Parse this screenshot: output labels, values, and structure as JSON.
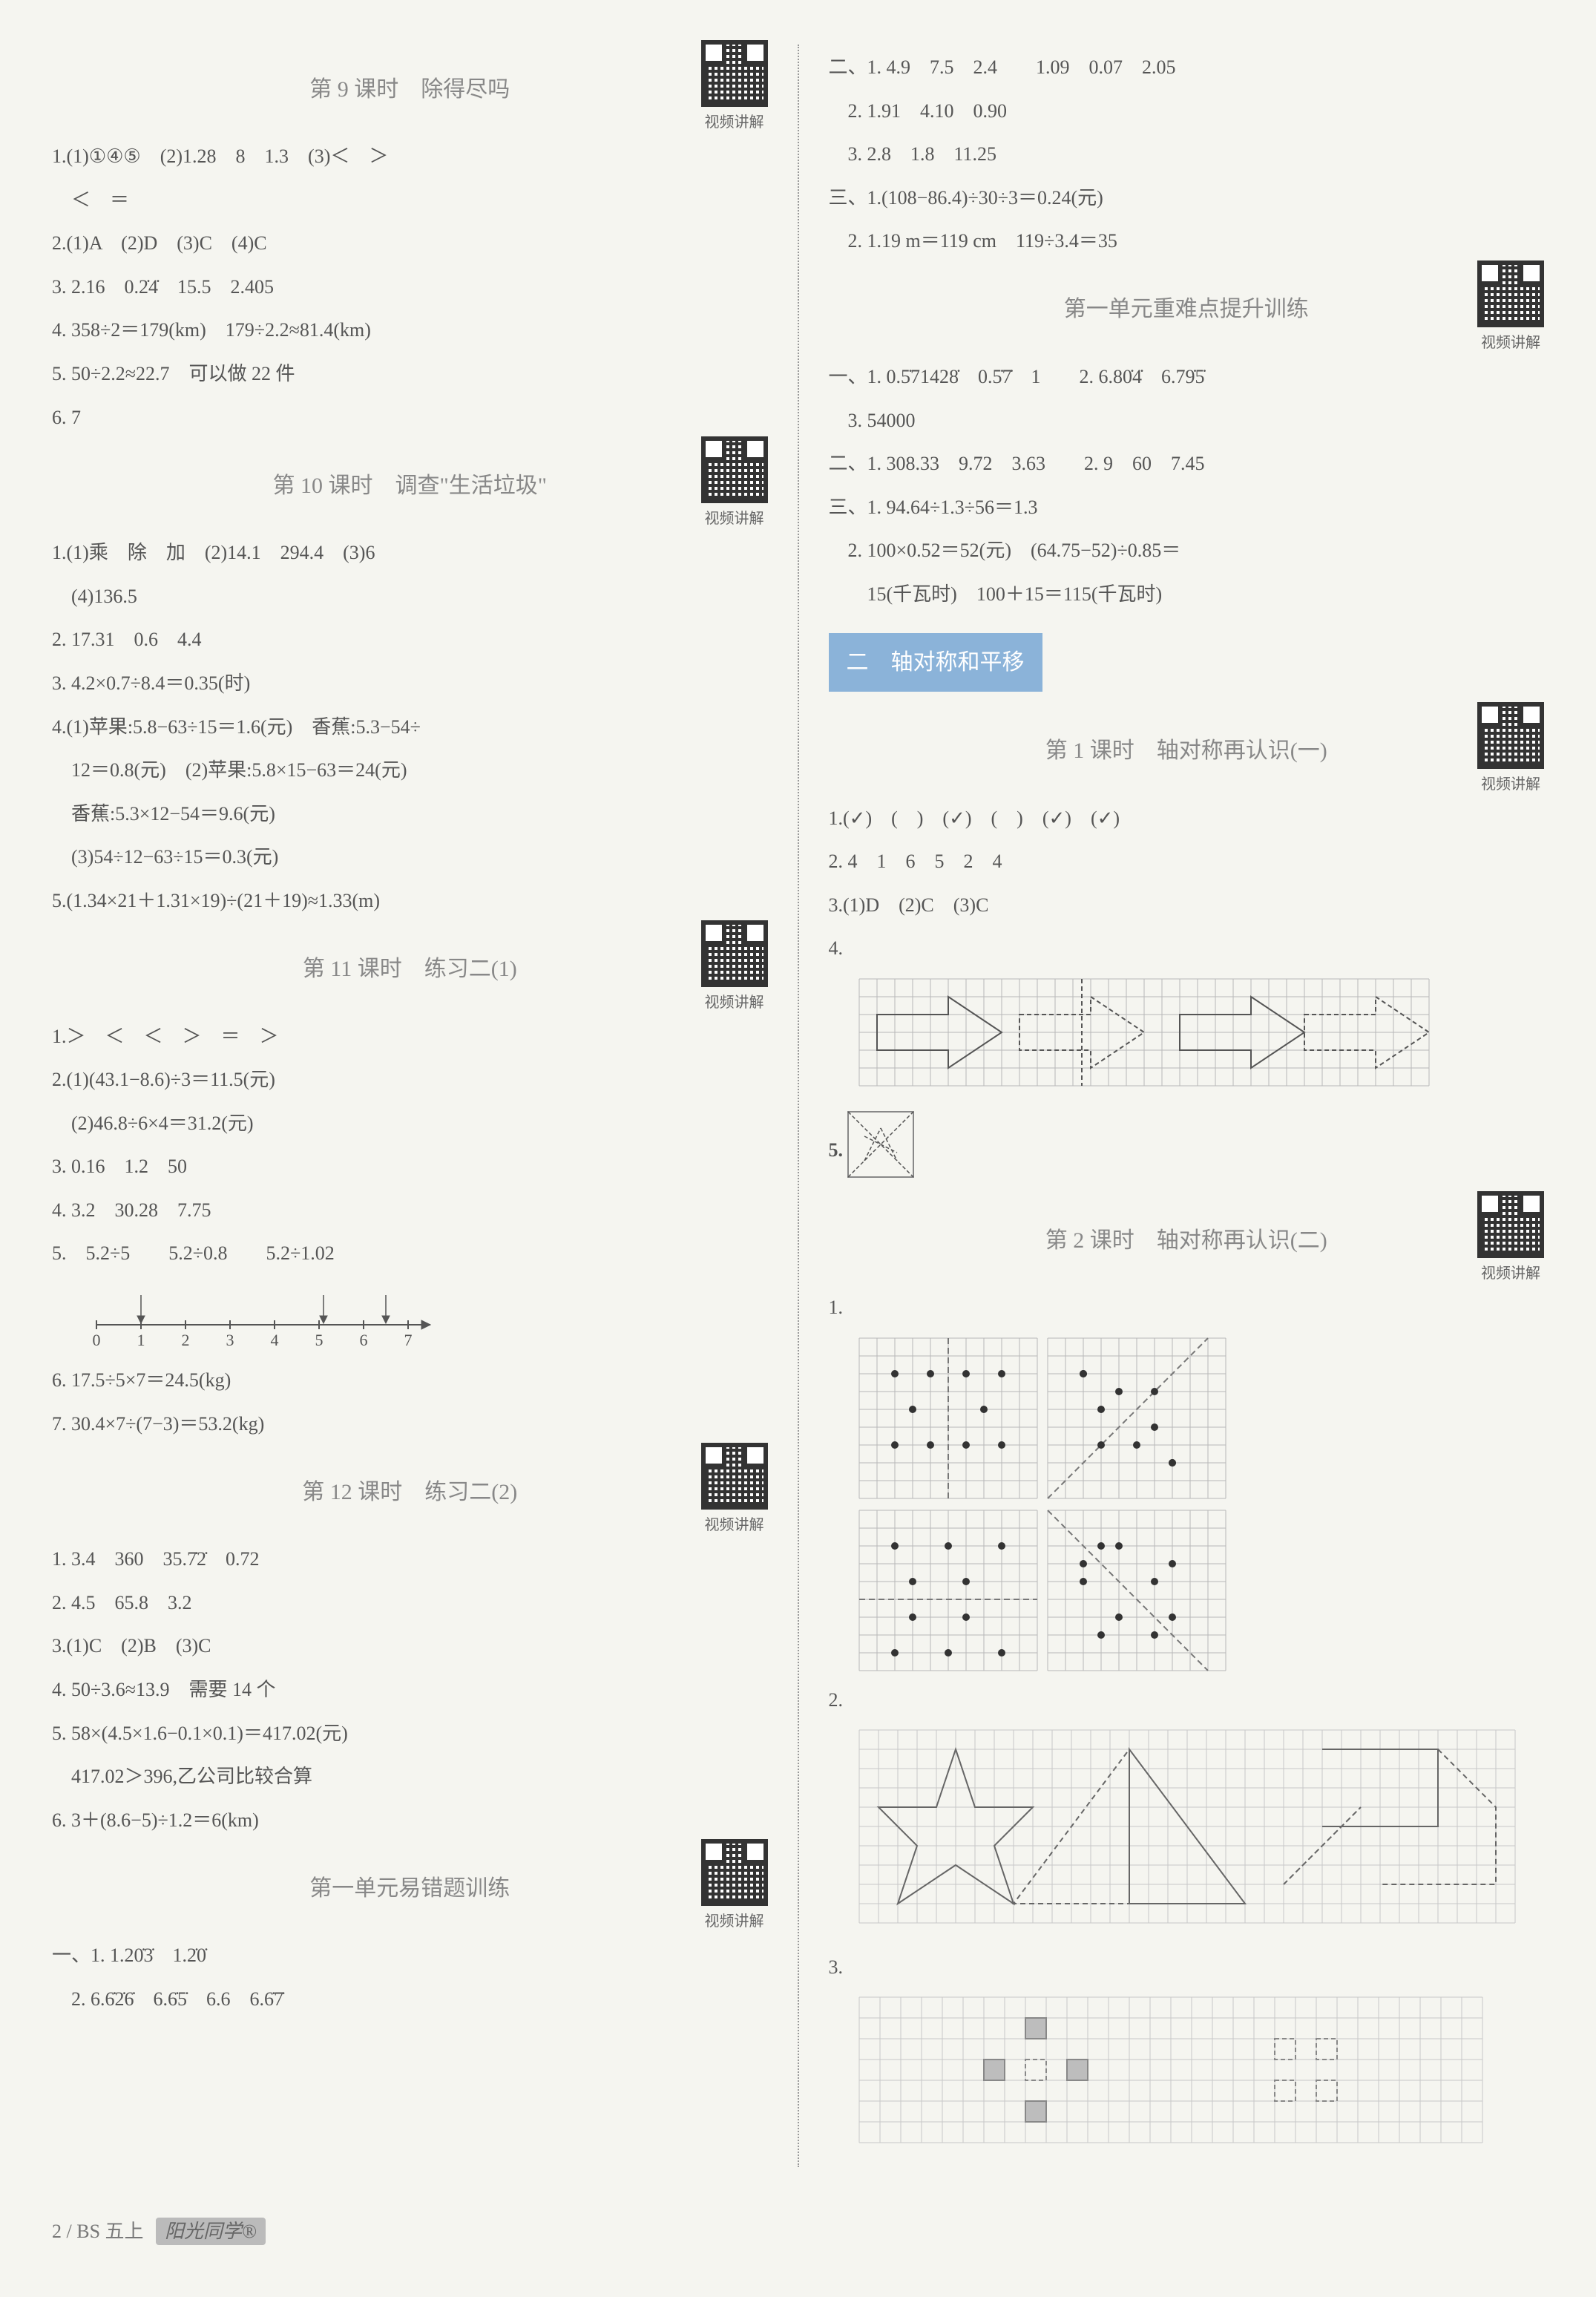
{
  "qr_label": "视频讲解",
  "left": {
    "sec9": {
      "title": "第 9 课时　除得尽吗",
      "lines": [
        "1.(1)①④⑤　(2)1.28　8　1.3　(3)＜　＞",
        "　＜　＝",
        "2.(1)A　(2)D　(3)C　(4)C",
        "3. 2.16　0.2̇4̇　15.5　2.405",
        "4. 358÷2＝179(km)　179÷2.2≈81.4(km)",
        "5. 50÷2.2≈22.7　可以做 22 件",
        "6. 7"
      ]
    },
    "sec10": {
      "title": "第 10 课时　调查\"生活垃圾\"",
      "lines": [
        "1.(1)乘　除　加　(2)14.1　294.4　(3)6",
        "　(4)136.5",
        "2. 17.31　0.6　4.4",
        "3. 4.2×0.7÷8.4＝0.35(时)",
        "4.(1)苹果:5.8−63÷15＝1.6(元)　香蕉:5.3−54÷",
        "　12＝0.8(元)　(2)苹果:5.8×15−63＝24(元)",
        "　香蕉:5.3×12−54＝9.6(元)",
        "　(3)54÷12−63÷15＝0.3(元)",
        "5.(1.34×21＋1.31×19)÷(21＋19)≈1.33(m)"
      ]
    },
    "sec11": {
      "title": "第 11 课时　练习二(1)",
      "lines": [
        "1.＞　＜　＜　＞　＝　＞",
        "2.(1)(43.1−8.6)÷3＝11.5(元)",
        "　(2)46.8÷6×4＝31.2(元)",
        "3. 0.16　1.2　50",
        "4. 3.2　30.28　7.75",
        "5.　5.2÷5　　5.2÷0.8　　5.2÷1.02"
      ],
      "numberline": {
        "ticks": [
          0,
          1,
          2,
          3,
          4,
          5,
          6,
          7
        ],
        "axis_color": "#555",
        "arrow_heads": [
          {
            "from_x": 1.0,
            "label": "5.2÷5"
          },
          {
            "from_x": 6.5,
            "label": "5.2÷0.8"
          },
          {
            "from_x": 5.1,
            "label": "5.2÷1.02"
          }
        ]
      },
      "lines_after": [
        "6. 17.5÷5×7＝24.5(kg)",
        "7. 30.4×7÷(7−3)＝53.2(kg)"
      ]
    },
    "sec12": {
      "title": "第 12 课时　练习二(2)",
      "lines": [
        "1. 3.4　360　35.7̇2̇　0.72",
        "2. 4.5　65.8　3.2",
        "3.(1)C　(2)B　(3)C",
        "4. 50÷3.6≈13.9　需要 14 个",
        "5. 58×(4.5×1.6−0.1×0.1)＝417.02(元)",
        "　417.02＞396,乙公司比较合算",
        "6. 3＋(8.6−5)÷1.2＝6(km)"
      ]
    },
    "unit_err": {
      "title": "第一单元易错题训练",
      "lines": [
        "一、1. 1.20̇3̇　1.2̇0̇",
        "　2. 6.6̇2̇6̇　6.6̇5̇　6.6　6.6̇7̇"
      ]
    }
  },
  "right": {
    "cont": {
      "lines": [
        "二、1. 4.9　7.5　2.4　　1.09　0.07　2.05",
        "　2. 1.91　4.10　0.90",
        "　3. 2.8　1.8　11.25",
        "三、1.(108−86.4)÷30÷3＝0.24(元)",
        "　2. 1.19 m＝119 cm　119÷3.4＝35"
      ]
    },
    "unit_hard": {
      "title": "第一单元重难点提升训练",
      "lines": [
        "一、1. 0.5̇71428̇　0.5̇7̇　1　　2. 6.80̇4̇　6.79̇5̇",
        "　3. 54000",
        "二、1. 308.33　9.72　3.63　　2. 9　60　7.45",
        "三、1. 94.64÷1.3÷56＝1.3",
        "　2. 100×0.52＝52(元)　(64.75−52)÷0.85＝",
        "　　15(千瓦时)　100＋15＝115(千瓦时)"
      ]
    },
    "banner": "二　轴对称和平移",
    "lesson1": {
      "title": "第 1 课时　轴对称再认识(一)",
      "lines": [
        "1.(✓)　(　)　(✓)　(　)　(✓)　(✓)",
        "2. 4　1　6　5　2　4",
        "3.(1)D　(2)C　(3)C",
        "4."
      ],
      "fig4": {
        "grid_color": "#b8b8b8",
        "stroke": "#555",
        "cols": 32,
        "rows": 6,
        "arrows": [
          {
            "poly": [
              [
                1,
                2
              ],
              [
                5,
                2
              ],
              [
                5,
                1
              ],
              [
                8,
                3
              ],
              [
                5,
                5
              ],
              [
                5,
                4
              ],
              [
                1,
                4
              ]
            ],
            "dash": false
          },
          {
            "poly": [
              [
                9,
                2
              ],
              [
                13,
                2
              ],
              [
                13,
                1
              ],
              [
                16,
                3
              ],
              [
                13,
                5
              ],
              [
                13,
                4
              ],
              [
                9,
                4
              ]
            ],
            "dash": true
          },
          {
            "poly": [
              [
                18,
                2
              ],
              [
                22,
                2
              ],
              [
                22,
                1
              ],
              [
                25,
                3
              ],
              [
                22,
                5
              ],
              [
                22,
                4
              ],
              [
                18,
                4
              ]
            ],
            "dash": false
          },
          {
            "poly": [
              [
                25,
                2
              ],
              [
                29,
                2
              ],
              [
                29,
                1
              ],
              [
                32,
                3
              ],
              [
                29,
                5
              ],
              [
                29,
                4
              ],
              [
                25,
                4
              ]
            ],
            "dash": true
          }
        ],
        "axis_line": [
          [
            12.5,
            0
          ],
          [
            12.5,
            6
          ]
        ]
      },
      "line5_label": "5.",
      "fig5": {
        "size": 4,
        "lines": [
          [
            [
              0,
              0
            ],
            [
              4,
              4
            ]
          ],
          [
            [
              0,
              4
            ],
            [
              4,
              0
            ]
          ],
          [
            [
              1,
              3
            ],
            [
              2,
              1
            ]
          ],
          [
            [
              2,
              1
            ],
            [
              3,
              3
            ]
          ],
          [
            [
              1,
              1.5
            ],
            [
              3,
              2.5
            ]
          ]
        ]
      }
    },
    "lesson2": {
      "title": "第 2 课时　轴对称再认识(二)",
      "line1_label": "1.",
      "fig1": {
        "grid_color": "#b8b8b8",
        "dot_color": "#333",
        "dash_color": "#777",
        "panels": [
          {
            "cols": 10,
            "rows": 9,
            "dots": [
              [
                2,
                2
              ],
              [
                4,
                2
              ],
              [
                3,
                4
              ],
              [
                2,
                6
              ],
              [
                4,
                6
              ]
            ],
            "axis": [
              [
                5,
                0
              ],
              [
                5,
                9
              ]
            ],
            "axis_dir": "v"
          },
          {
            "cols": 10,
            "rows": 9,
            "dots": [
              [
                2,
                2
              ],
              [
                4,
                3
              ],
              [
                6,
                5
              ],
              [
                3,
                6
              ],
              [
                7,
                7
              ]
            ],
            "axis": [
              [
                0,
                9
              ],
              [
                9,
                0
              ]
            ],
            "axis_dir": "d"
          },
          {
            "cols": 10,
            "rows": 9,
            "dots": [
              [
                2,
                2
              ],
              [
                5,
                2
              ],
              [
                8,
                2
              ],
              [
                3,
                4
              ],
              [
                6,
                4
              ]
            ],
            "axis": [
              [
                0,
                5
              ],
              [
                10,
                5
              ]
            ],
            "axis_dir": "h"
          },
          {
            "cols": 10,
            "rows": 9,
            "dots": [
              [
                2,
                3
              ],
              [
                4,
                2
              ],
              [
                6,
                4
              ],
              [
                7,
                6
              ],
              [
                3,
                7
              ]
            ],
            "axis": [
              [
                0,
                0
              ],
              [
                9,
                9
              ]
            ],
            "axis_dir": "d"
          }
        ]
      },
      "line2_label": "2.",
      "fig2": {
        "grid_color": "#c8c8c8",
        "stroke": "#666",
        "cols": 34,
        "rows": 10,
        "shapes": [
          {
            "poly": [
              [
                5,
                1
              ],
              [
                6,
                4
              ],
              [
                9,
                4
              ],
              [
                7,
                6
              ],
              [
                8,
                9
              ],
              [
                5,
                7
              ],
              [
                2,
                9
              ],
              [
                3,
                6
              ],
              [
                1,
                4
              ],
              [
                4,
                4
              ]
            ],
            "dash": false
          },
          {
            "poly": [
              [
                14,
                1
              ],
              [
                14,
                9
              ],
              [
                20,
                9
              ]
            ],
            "dash": false,
            "closed": true
          },
          {
            "poly": [
              [
                14,
                1
              ],
              [
                14,
                9
              ],
              [
                8,
                9
              ]
            ],
            "dash": true,
            "closed": true
          },
          {
            "poly": [
              [
                24,
                1
              ],
              [
                30,
                1
              ],
              [
                30,
                5
              ],
              [
                24,
                5
              ]
            ],
            "dash": false,
            "closed": false,
            "extra": [
              [
                30,
                1
              ],
              [
                33,
                4
              ],
              [
                33,
                8
              ],
              [
                27,
                8
              ]
            ]
          },
          {
            "poly": [
              [
                22,
                8
              ],
              [
                26,
                4
              ]
            ],
            "dash": true
          }
        ]
      },
      "line3_label": "3.",
      "fig3": {
        "grid_color": "#c8c8c8",
        "fill": "#bdbdbd",
        "stroke": "#888",
        "cols": 30,
        "rows": 7,
        "solid_cells": [
          [
            8,
            1
          ],
          [
            6,
            3
          ],
          [
            10,
            3
          ],
          [
            8,
            5
          ]
        ],
        "dash_cells": [
          [
            8,
            3
          ],
          [
            20,
            2
          ],
          [
            22,
            2
          ],
          [
            20,
            4
          ],
          [
            22,
            4
          ]
        ]
      }
    }
  },
  "footer": {
    "page": "2 / BS 五上",
    "brand": "阳光同学®"
  }
}
